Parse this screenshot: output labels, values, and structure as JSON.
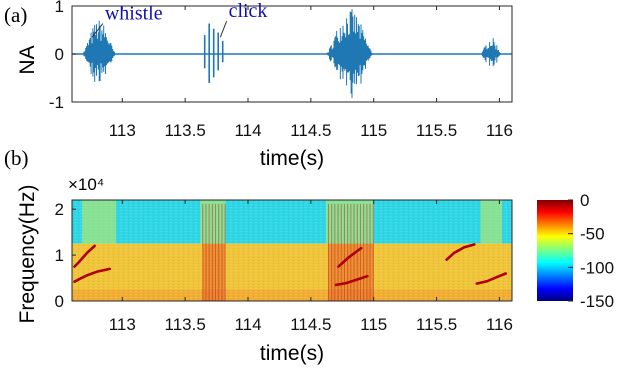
{
  "colors": {
    "waveform": "#1f77b4",
    "panel_label": "#ff00ff",
    "annotation": "#1010b0",
    "axes": "#262626"
  },
  "chart_data": [
    {
      "panel": "(a)",
      "type": "line",
      "ylabel": "NA",
      "xlabel": "time(s)",
      "xlim": [
        112.6,
        116.1
      ],
      "ylim": [
        -1,
        1
      ],
      "xticks": [
        113,
        113.5,
        114,
        114.5,
        115,
        115.5,
        116
      ],
      "yticks": [
        -1,
        0,
        1
      ],
      "annotations": [
        {
          "text": "whistle",
          "x": 112.75,
          "y": 0.55
        },
        {
          "text": "click",
          "x": 113.75,
          "y": 0.6
        }
      ],
      "bursts": [
        {
          "kind": "whistle",
          "start": 112.68,
          "end": 112.95,
          "peak": 0.72
        },
        {
          "kind": "clicks",
          "start": 113.62,
          "end": 113.82,
          "peak": 0.72
        },
        {
          "kind": "whistle+clicks",
          "start": 114.62,
          "end": 115.0,
          "peak": 0.95
        },
        {
          "kind": "whistle",
          "start": 115.85,
          "end": 116.02,
          "peak": 0.35
        }
      ]
    },
    {
      "panel": "(b)",
      "type": "heatmap",
      "ylabel": "Frequency(Hz)",
      "xlabel": "time(s)",
      "y_multiplier": "×10⁴",
      "xlim": [
        112.6,
        116.1
      ],
      "ylim": [
        0,
        22000
      ],
      "xticks": [
        113,
        113.5,
        114,
        114.5,
        115,
        115.5,
        116
      ],
      "yticks": [
        0,
        1,
        2
      ],
      "colorbar": {
        "ticks": [
          0,
          -50,
          -100,
          -150
        ],
        "range": [
          -150,
          0
        ]
      },
      "bands": {
        "low_energy_upper_cutoff_hz": 12500,
        "upper_band_level_db": -95,
        "lower_band_level_db": -50
      },
      "whistle_contours": [
        {
          "t": [
            112.62,
            112.66,
            112.72,
            112.8,
            112.9
          ],
          "f": [
            4200,
            4800,
            5600,
            6400,
            7000
          ]
        },
        {
          "t": [
            112.62,
            112.66,
            112.72,
            112.78
          ],
          "f": [
            7500,
            8600,
            10500,
            12000
          ]
        },
        {
          "t": [
            114.7,
            114.78,
            114.86,
            114.95
          ],
          "f": [
            3500,
            3900,
            4600,
            5400
          ]
        },
        {
          "t": [
            114.72,
            114.8,
            114.9
          ],
          "f": [
            7500,
            9500,
            11500
          ]
        },
        {
          "t": [
            115.82,
            115.9,
            115.98,
            116.05
          ],
          "f": [
            3800,
            4300,
            5200,
            6000
          ]
        },
        {
          "t": [
            115.58,
            115.64,
            115.72,
            115.8
          ],
          "f": [
            9000,
            10500,
            11700,
            12300
          ]
        }
      ],
      "click_regions": [
        {
          "start": 113.64,
          "end": 113.82
        },
        {
          "start": 114.64,
          "end": 115.0
        }
      ]
    }
  ]
}
